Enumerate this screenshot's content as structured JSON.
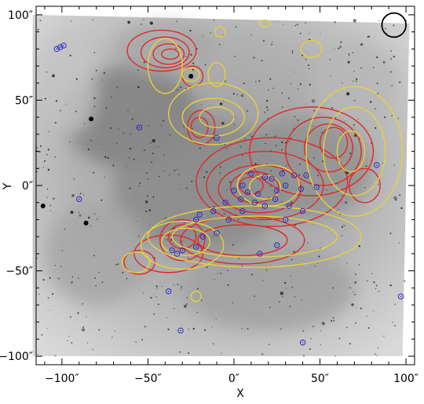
{
  "chart_data": {
    "type": "contour",
    "xlabel": "X",
    "ylabel": "Y",
    "xlim": [
      -115,
      105
    ],
    "ylim": [
      -105,
      105
    ],
    "x_ticks": [
      {
        "value": -100,
        "label": "−100″"
      },
      {
        "value": -50,
        "label": "−50″"
      },
      {
        "value": 0,
        "label": "0″"
      },
      {
        "value": 50,
        "label": "50″"
      },
      {
        "value": 100,
        "label": "100″"
      }
    ],
    "y_ticks": [
      {
        "value": 100,
        "label": "100″"
      },
      {
        "value": 50,
        "label": "50″"
      },
      {
        "value": 0,
        "label": "0″"
      },
      {
        "value": -50,
        "label": "−50″"
      },
      {
        "value": -100,
        "label": "−100″"
      }
    ],
    "background_image": "greyscale nebula image (inverted)",
    "beam_marker": {
      "x": 93,
      "y": 94,
      "radius": 3.5
    },
    "series": [
      {
        "color": "#e02828",
        "contours": [
          {
            "center": [
              -42,
              79
            ],
            "rx": 20,
            "ry": 12
          },
          {
            "center": [
              -40,
              78
            ],
            "rx": 14,
            "ry": 9
          },
          {
            "center": [
              -38,
              77
            ],
            "rx": 9,
            "ry": 6
          },
          {
            "center": [
              -37,
              77
            ],
            "rx": 5,
            "ry": 3
          },
          {
            "center": [
              -24,
              64
            ],
            "rx": 6,
            "ry": 6
          },
          {
            "center": [
              -19,
              34
            ],
            "rx": 8,
            "ry": 10
          },
          {
            "center": [
              -20,
              34
            ],
            "rx": 5,
            "ry": 6
          },
          {
            "center": [
              22,
              2
            ],
            "rx": 44,
            "ry": 26
          },
          {
            "center": [
              18,
              0
            ],
            "rx": 34,
            "ry": 20
          },
          {
            "center": [
              15,
              -2
            ],
            "rx": 24,
            "ry": 14
          },
          {
            "center": [
              12,
              -1
            ],
            "rx": 14,
            "ry": 9
          },
          {
            "center": [
              10,
              0
            ],
            "rx": 7,
            "ry": 5
          },
          {
            "center": [
              52,
              20
            ],
            "rx": 22,
            "ry": 20
          },
          {
            "center": [
              55,
              22
            ],
            "rx": 14,
            "ry": 14
          },
          {
            "center": [
              58,
              25
            ],
            "rx": 8,
            "ry": 9
          },
          {
            "center": [
              45,
              20
            ],
            "rx": 36,
            "ry": 26
          },
          {
            "center": [
              5,
              -32
            ],
            "rx": 36,
            "ry": 14
          },
          {
            "center": [
              5,
              -32
            ],
            "rx": 26,
            "ry": 9
          },
          {
            "center": [
              -30,
              -32
            ],
            "rx": 13,
            "ry": 12
          },
          {
            "center": [
              -30,
              -30
            ],
            "rx": 8,
            "ry": 7
          },
          {
            "center": [
              -55,
              -45
            ],
            "rx": 9,
            "ry": 7
          },
          {
            "center": [
              -38,
              -40
            ],
            "rx": 20,
            "ry": 11
          },
          {
            "center": [
              76,
              0
            ],
            "rx": 9,
            "ry": 10
          }
        ]
      },
      {
        "color": "#e6d23a",
        "contours": [
          {
            "center": [
              -40,
              70
            ],
            "rx": 10,
            "ry": 16
          },
          {
            "center": [
              -25,
              65
            ],
            "rx": 5,
            "ry": 4
          },
          {
            "center": [
              -10,
              65
            ],
            "rx": 5,
            "ry": 7
          },
          {
            "center": [
              -8,
              90
            ],
            "rx": 3,
            "ry": 3
          },
          {
            "center": [
              18,
              95
            ],
            "rx": 3,
            "ry": 2
          },
          {
            "center": [
              45,
              80
            ],
            "rx": 6,
            "ry": 5
          },
          {
            "center": [
              -12,
              42
            ],
            "rx": 26,
            "ry": 18
          },
          {
            "center": [
              -12,
              40
            ],
            "rx": 18,
            "ry": 11
          },
          {
            "center": [
              -10,
              40
            ],
            "rx": 10,
            "ry": 6
          },
          {
            "center": [
              20,
              0
            ],
            "rx": 18,
            "ry": 12
          },
          {
            "center": [
              18,
              -1
            ],
            "rx": 9,
            "ry": 7
          },
          {
            "center": [
              12,
              -30
            ],
            "rx": 62,
            "ry": 18
          },
          {
            "center": [
              12,
              -30
            ],
            "rx": 48,
            "ry": 12
          },
          {
            "center": [
              70,
              20
            ],
            "rx": 28,
            "ry": 38
          },
          {
            "center": [
              70,
              20
            ],
            "rx": 18,
            "ry": 26
          },
          {
            "center": [
              68,
              20
            ],
            "rx": 8,
            "ry": 12
          },
          {
            "center": [
              -30,
              -35
            ],
            "rx": 24,
            "ry": 14
          },
          {
            "center": [
              -28,
              -33
            ],
            "rx": 14,
            "ry": 8
          },
          {
            "center": [
              -57,
              -45
            ],
            "rx": 8,
            "ry": 6
          },
          {
            "center": [
              -22,
              -65
            ],
            "rx": 3,
            "ry": 3
          }
        ]
      }
    ],
    "points_color": "#2828c8",
    "points": [
      [
        -103,
        80
      ],
      [
        -101,
        81
      ],
      [
        -99,
        82
      ],
      [
        -55,
        34
      ],
      [
        -90,
        -8
      ],
      [
        10,
        7
      ],
      [
        18,
        5
      ],
      [
        22,
        4
      ],
      [
        28,
        7
      ],
      [
        35,
        6
      ],
      [
        42,
        6
      ],
      [
        25,
        -3
      ],
      [
        14,
        -5
      ],
      [
        30,
        0
      ],
      [
        39,
        -2
      ],
      [
        48,
        -1
      ],
      [
        0,
        -3
      ],
      [
        4,
        -8
      ],
      [
        8,
        -4
      ],
      [
        12,
        -10
      ],
      [
        18,
        -12
      ],
      [
        24,
        -8
      ],
      [
        32,
        -12
      ],
      [
        5,
        -15
      ],
      [
        -22,
        -20
      ],
      [
        -12,
        -15
      ],
      [
        -5,
        -10
      ],
      [
        -18,
        -30
      ],
      [
        -30,
        -38
      ],
      [
        -36,
        -38
      ],
      [
        -33,
        -40
      ],
      [
        15,
        -40
      ],
      [
        25,
        -35
      ],
      [
        -22,
        -36
      ],
      [
        -38,
        -62
      ],
      [
        -31,
        -85
      ],
      [
        40,
        -92
      ],
      [
        97,
        -65
      ],
      [
        -20,
        -17
      ],
      [
        -3,
        -20
      ],
      [
        30,
        -20
      ],
      [
        40,
        -15
      ],
      [
        5,
        0
      ],
      [
        -10,
        -28
      ],
      [
        83,
        12
      ],
      [
        -10,
        28
      ]
    ]
  }
}
